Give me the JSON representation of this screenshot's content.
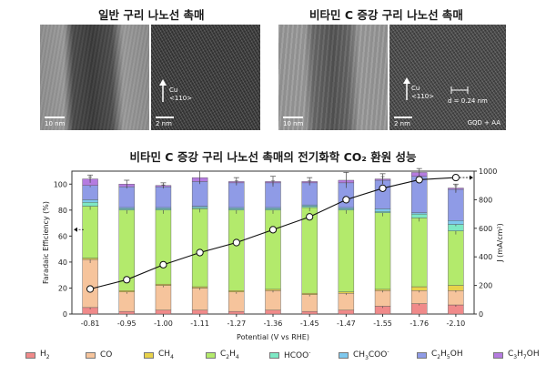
{
  "panels": {
    "left_title": "일반 구리 나노선 촉매",
    "right_title": "비타민 C 증강 구리 나노선 촉매",
    "images": [
      {
        "scale": "10 nm",
        "overlay": ""
      },
      {
        "scale": "2 nm",
        "overlay": "Cu\n<110>"
      },
      {
        "scale": "10 nm",
        "overlay": ""
      },
      {
        "scale": "2 nm",
        "overlay": "Cu\n<110>",
        "spacing": "d = 0.24 nm",
        "sample": "GQD + AA"
      }
    ]
  },
  "chart_title": "비타민 C 증강 구리 나노선 촉매의 전기화학 CO₂ 환원 성능",
  "colors": {
    "H2": "#f08a8a",
    "CO": "#f6c49c",
    "CH4": "#e8d24a",
    "C2H4": "#b3ea6c",
    "HCOO": "#7de8c4",
    "CH3COO": "#7ec8ee",
    "C2H5OH": "#8f9be6",
    "C3H7OH": "#b57be0"
  },
  "legend": [
    {
      "key": "H2",
      "base": "H",
      "sub": "2",
      "sup": ""
    },
    {
      "key": "CO",
      "base": "CO",
      "sub": "",
      "sup": ""
    },
    {
      "key": "CH4",
      "base": "CH",
      "sub": "4",
      "sup": ""
    },
    {
      "key": "C2H4",
      "base": "C",
      "sub": "2",
      "base2": "H",
      "sub2": "4",
      "sup": ""
    },
    {
      "key": "HCOO",
      "base": "HCOO",
      "sub": "",
      "sup": "-"
    },
    {
      "key": "CH3COO",
      "base": "CH",
      "sub": "3",
      "base2": "COO",
      "sub2": "",
      "sup": "-"
    },
    {
      "key": "C2H5OH",
      "base": "C",
      "sub": "2",
      "base2": "H",
      "sub2": "5",
      "base3": "OH",
      "sup": ""
    },
    {
      "key": "C3H7OH",
      "base": "C",
      "sub": "3",
      "base2": "H",
      "sub2": "7",
      "base3": "OH",
      "sup": ""
    }
  ],
  "chart_data": {
    "type": "bar",
    "stacked": true,
    "categories": [
      "-0.81",
      "-0.95",
      "-1.00",
      "-1.11",
      "-1.27",
      "-1.36",
      "-1.45",
      "-1.47",
      "-1.55",
      "-1.76",
      "-2.10"
    ],
    "xlabel": "Potential (V vs RHE)",
    "ylabel": "Faradaic Efficiency (%)",
    "ylim": [
      0,
      110
    ],
    "yticks": [
      0,
      20,
      40,
      60,
      80,
      100
    ],
    "y2label": "J (mA/cm²)",
    "y2lim": [
      0,
      1000
    ],
    "y2ticks": [
      0,
      200,
      400,
      600,
      800,
      1000
    ],
    "series": [
      {
        "key": "H2",
        "values": [
          5,
          2,
          3,
          3,
          2,
          3,
          2,
          3,
          6,
          8,
          7
        ]
      },
      {
        "key": "CO",
        "values": [
          37,
          15,
          19,
          17,
          15,
          15,
          13,
          13,
          12,
          10,
          11
        ]
      },
      {
        "key": "CH4",
        "values": [
          1,
          1,
          1,
          1,
          1,
          1,
          1,
          1,
          1,
          3,
          4
        ]
      },
      {
        "key": "C2H4",
        "values": [
          40,
          62,
          57,
          60,
          62,
          61,
          66,
          63,
          59,
          53,
          42
        ]
      },
      {
        "key": "HCOO",
        "values": [
          3,
          1,
          1,
          1,
          1,
          1,
          1,
          1,
          1,
          3,
          5
        ]
      },
      {
        "key": "CH3COO",
        "values": [
          2,
          1,
          1,
          1,
          1,
          1,
          1,
          1,
          2,
          1,
          3
        ]
      },
      {
        "key": "C2H5OH",
        "values": [
          11,
          16,
          16,
          19,
          19,
          19,
          17,
          19,
          22,
          28,
          24
        ]
      },
      {
        "key": "C3H7OH",
        "values": [
          5,
          2,
          1,
          3,
          1,
          1,
          1,
          2,
          1,
          3,
          1
        ]
      }
    ],
    "errors": [
      3,
      3,
      2,
      5,
      3,
      4,
      3,
      6,
      4,
      3,
      3
    ],
    "current_density": [
      175,
      240,
      345,
      430,
      500,
      590,
      680,
      800,
      880,
      940,
      955
    ],
    "current_arrow_last": "→",
    "fe_arrow": "←"
  }
}
